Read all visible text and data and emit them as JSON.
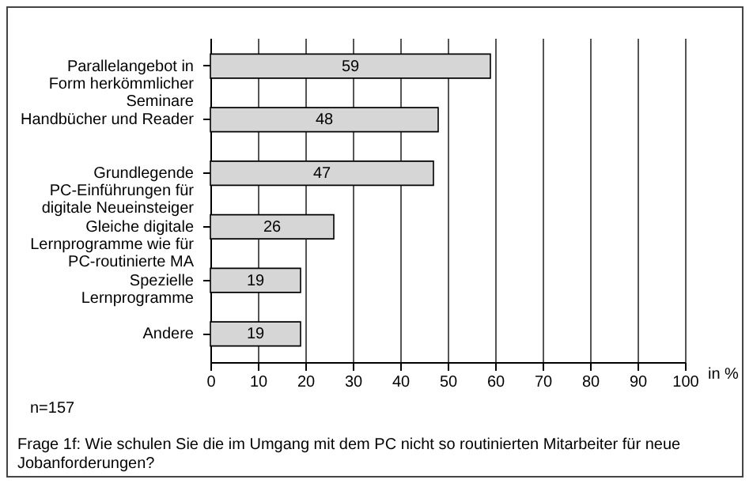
{
  "chart_data": {
    "type": "bar",
    "orientation": "horizontal",
    "xlabel": "in %",
    "categories": [
      "Parallelangebot in Form herkömmlicher Seminare",
      "Handbücher und Reader",
      "Grundlegende PC-Einführungen für digitale Neueinsteiger",
      "Gleiche digitale Lernprogramme wie für PC-routinierte MA",
      "Spezielle Lernprogramme",
      "Andere"
    ],
    "values": [
      59,
      48,
      47,
      26,
      19,
      19
    ],
    "color": "#d6d6d6",
    "xlim": [
      0,
      100
    ],
    "xticks": [
      0,
      10,
      20,
      30,
      40,
      50,
      60,
      70,
      80,
      90,
      100
    ],
    "grid": "x",
    "data_labels": true,
    "annotations": [
      "n=157",
      "Frage 1f: Wie schulen Sie die im Umgang mit dem PC nicht so routinierten Mitarbeiter für neue Jobanforderungen?"
    ]
  }
}
